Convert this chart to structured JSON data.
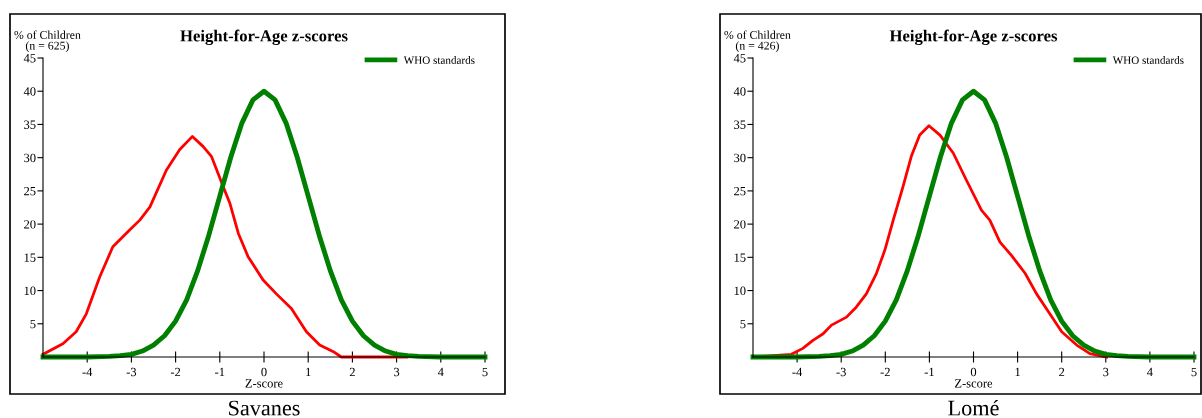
{
  "chart_data": [
    {
      "type": "line",
      "title": "Height-for-Age z-scores",
      "ylabel": "% of Children\n(n = 625)",
      "xlabel": "Z-score",
      "annotations": [
        "Savanes"
      ],
      "xlim": [
        -5,
        5
      ],
      "ylim": [
        0,
        45
      ],
      "xticks": [
        -4,
        -3,
        -2,
        -1,
        0,
        1,
        2,
        3,
        4,
        5
      ],
      "yticks": [
        5,
        10,
        15,
        20,
        25,
        30,
        35,
        40,
        45
      ],
      "legend": "top right",
      "grid": false,
      "marker": "none",
      "line_style": "solid",
      "series": [
        {
          "color": "#ff0000",
          "x": [
            -5,
            -4.55,
            -4.25,
            -4.02,
            -3.72,
            -3.42,
            -3.04,
            -2.81,
            -2.58,
            -2.21,
            -1.91,
            -1.62,
            -1.38,
            -1.19,
            -0.92,
            -0.77,
            -0.58,
            -0.36,
            -0.02,
            0.28,
            0.62,
            0.96,
            1.26,
            1.57,
            1.75,
            3.23
          ],
          "values": [
            0.4,
            2,
            3.8,
            6.5,
            12,
            16.6,
            19.1,
            20.6,
            22.6,
            28.1,
            31.2,
            33.2,
            31.7,
            30.2,
            25.6,
            23.1,
            18.6,
            15.1,
            11.6,
            9.5,
            7.3,
            3.8,
            1.8,
            0.8,
            0,
            0
          ]
        },
        {
          "name": "WHO standards",
          "color": "#008000",
          "x": [
            -5,
            -4,
            -3.5,
            -3.25,
            -3,
            -2.75,
            -2.5,
            -2.25,
            -2,
            -1.75,
            -1.5,
            -1.25,
            -1,
            -0.75,
            -0.5,
            -0.25,
            0,
            0.25,
            0.5,
            0.75,
            1,
            1.25,
            1.5,
            1.75,
            2,
            2.25,
            2.5,
            2.75,
            3,
            3.25,
            3.5,
            4,
            5
          ],
          "values": [
            0,
            0,
            0.1,
            0.2,
            0.4,
            0.9,
            1.8,
            3.2,
            5.4,
            8.6,
            13,
            18.3,
            24.2,
            30.1,
            35.2,
            38.7,
            40,
            38.7,
            35.2,
            30.1,
            24.2,
            18.3,
            13,
            8.6,
            5.4,
            3.2,
            1.8,
            0.9,
            0.4,
            0.2,
            0.1,
            0,
            0
          ]
        }
      ]
    },
    {
      "type": "line",
      "title": "Height-for-Age z-scores",
      "ylabel": "% of Children\n(n = 426)",
      "xlabel": "Z-score",
      "annotations": [
        "Lomé"
      ],
      "xlim": [
        -5,
        5
      ],
      "ylim": [
        0,
        45
      ],
      "xticks": [
        -4,
        -3,
        -2,
        -1,
        0,
        1,
        2,
        3,
        4,
        5
      ],
      "yticks": [
        5,
        10,
        15,
        20,
        25,
        30,
        35,
        40,
        45
      ],
      "legend": "top right",
      "grid": false,
      "marker": "none",
      "line_style": "solid",
      "series": [
        {
          "color": "#ff0000",
          "x": [
            -5,
            -4.13,
            -3.87,
            -3.64,
            -3.41,
            -3.22,
            -2.88,
            -2.66,
            -2.43,
            -2.2,
            -2.01,
            -1.82,
            -1.6,
            -1.41,
            -1.22,
            -1.01,
            -0.76,
            -0.46,
            -0.16,
            0.18,
            0.37,
            0.6,
            0.86,
            1.17,
            1.43,
            1.73,
            2,
            2.34,
            2.64,
            3.02
          ],
          "values": [
            0,
            0.4,
            1.3,
            2.5,
            3.5,
            4.8,
            6,
            7.5,
            9.5,
            12.6,
            16.1,
            20.6,
            25.6,
            30.2,
            33.4,
            34.8,
            33.4,
            30.7,
            26.6,
            22.1,
            20.6,
            17.3,
            15.3,
            12.6,
            9.5,
            6.5,
            3.8,
            1.8,
            0.5,
            0
          ]
        },
        {
          "name": "WHO standards",
          "color": "#008000",
          "x": [
            -5,
            -4,
            -3.5,
            -3.25,
            -3,
            -2.75,
            -2.5,
            -2.25,
            -2,
            -1.75,
            -1.5,
            -1.25,
            -1,
            -0.75,
            -0.5,
            -0.25,
            0,
            0.25,
            0.5,
            0.75,
            1,
            1.25,
            1.5,
            1.75,
            2,
            2.25,
            2.5,
            2.75,
            3,
            3.25,
            3.5,
            4,
            5
          ],
          "values": [
            0,
            0,
            0.1,
            0.2,
            0.4,
            0.9,
            1.8,
            3.2,
            5.4,
            8.6,
            13,
            18.3,
            24.2,
            30.1,
            35.2,
            38.7,
            40,
            38.7,
            35.2,
            30.1,
            24.2,
            18.3,
            13,
            8.6,
            5.4,
            3.2,
            1.8,
            0.9,
            0.4,
            0.2,
            0.1,
            0,
            0
          ]
        }
      ]
    }
  ]
}
